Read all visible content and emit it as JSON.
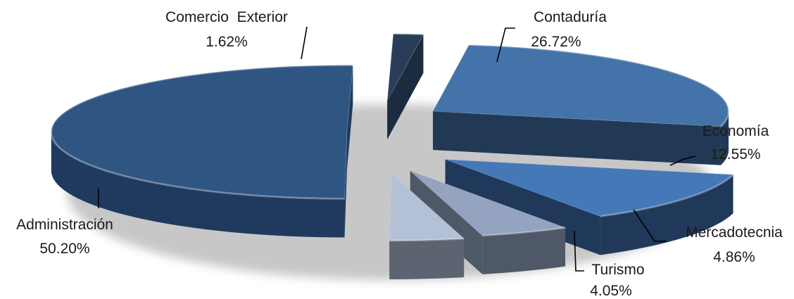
{
  "chart_data": {
    "type": "pie",
    "title": "",
    "exploded": true,
    "three_d": true,
    "slices": [
      {
        "label": "Contaduría",
        "value_text": "26.72%",
        "value": 26.72,
        "top_color": "#4373a8",
        "side_color": "#223955"
      },
      {
        "label": "Economía",
        "value_text": "12.55%",
        "value": 12.55,
        "top_color": "#4478b6",
        "side_color": "#20395a"
      },
      {
        "label": "Mercadotecnia",
        "value_text": "4.86%",
        "value": 4.86,
        "top_color": "#93a3c0",
        "side_color": "#4f5866"
      },
      {
        "label": "Turismo",
        "value_text": "4.05%",
        "value": 4.05,
        "top_color": "#b4c0d6",
        "side_color": "#5c6371"
      },
      {
        "label": "Administración",
        "value_text": "50.20%",
        "value": 50.2,
        "top_color": "#2f5683",
        "side_color": "#1f3a5e"
      },
      {
        "label": "Comercio  Exterior",
        "value_text": "1.62%",
        "value": 1.62,
        "top_color": "#283d57",
        "side_color": "#1b2b40"
      }
    ]
  }
}
